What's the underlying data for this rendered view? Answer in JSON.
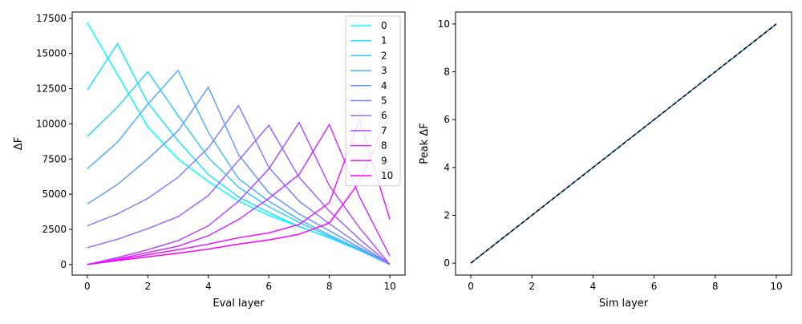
{
  "chart_data": [
    {
      "type": "line",
      "title": "",
      "xlabel": "Eval layer",
      "ylabel": "ΔF",
      "xlim": [
        -0.5,
        10.5
      ],
      "ylim": [
        -750,
        17950
      ],
      "xticks": [
        0,
        2,
        4,
        6,
        8,
        10
      ],
      "yticks": [
        0,
        2500,
        5000,
        7500,
        10000,
        12500,
        15000,
        17500
      ],
      "grid": false,
      "legend": "top-right",
      "x": [
        0,
        1,
        2,
        3,
        4,
        5,
        6,
        7,
        8,
        9,
        10
      ],
      "series": [
        {
          "name": "0",
          "color": "#00ffff",
          "values": [
            17200,
            13500,
            9800,
            7500,
            5900,
            4500,
            3500,
            2700,
            1900,
            1100,
            0
          ]
        },
        {
          "name": "1",
          "color": "#19e6ff",
          "values": [
            12400,
            15700,
            11500,
            8800,
            6400,
            4800,
            3700,
            2700,
            1900,
            1000,
            0
          ]
        },
        {
          "name": "2",
          "color": "#33ccff",
          "values": [
            9100,
            11200,
            13700,
            10600,
            7600,
            5500,
            4100,
            3000,
            2000,
            1000,
            0
          ]
        },
        {
          "name": "3",
          "color": "#4cb3ff",
          "values": [
            6800,
            8700,
            11400,
            13800,
            9400,
            6100,
            4500,
            3200,
            2100,
            1100,
            0
          ]
        },
        {
          "name": "4",
          "color": "#6699ff",
          "values": [
            4300,
            5700,
            7500,
            9500,
            12600,
            7800,
            5100,
            3600,
            2400,
            1200,
            0
          ]
        },
        {
          "name": "5",
          "color": "#7f80ff",
          "values": [
            2750,
            3600,
            4700,
            6200,
            8300,
            11300,
            6900,
            4500,
            2900,
            1400,
            0
          ]
        },
        {
          "name": "6",
          "color": "#9966ff",
          "values": [
            1200,
            1800,
            2550,
            3400,
            4900,
            7400,
            9900,
            6200,
            3800,
            1800,
            0
          ]
        },
        {
          "name": "7",
          "color": "#b34cff",
          "values": [
            0,
            500,
            1050,
            1700,
            2750,
            4500,
            6800,
            10100,
            5600,
            2600,
            0
          ]
        },
        {
          "name": "8",
          "color": "#cc33ff",
          "values": [
            0,
            400,
            850,
            1300,
            2050,
            3200,
            4700,
            6400,
            9950,
            4800,
            600
          ]
        },
        {
          "name": "9",
          "color": "#e619ff",
          "values": [
            0,
            350,
            700,
            1050,
            1450,
            1900,
            2250,
            2850,
            4400,
            10300,
            3200
          ]
        },
        {
          "name": "10",
          "color": "#ff00ff",
          "values": [
            0,
            280,
            550,
            800,
            1100,
            1450,
            1750,
            2150,
            2950,
            5900,
            10700
          ]
        }
      ]
    },
    {
      "type": "line",
      "title": "",
      "xlabel": "Sim layer",
      "ylabel": "Peak ΔF",
      "xlim": [
        -0.5,
        10.5
      ],
      "ylim": [
        -0.5,
        10.5
      ],
      "xticks": [
        0,
        2,
        4,
        6,
        8,
        10
      ],
      "yticks": [
        0,
        2,
        4,
        6,
        8,
        10
      ],
      "grid": false,
      "x": [
        0,
        10
      ],
      "series": [
        {
          "color": "#1f77b4",
          "style": "solid",
          "values": [
            0,
            10
          ]
        },
        {
          "color": "#000000",
          "style": "dashed",
          "values": [
            0,
            10
          ]
        }
      ]
    }
  ]
}
